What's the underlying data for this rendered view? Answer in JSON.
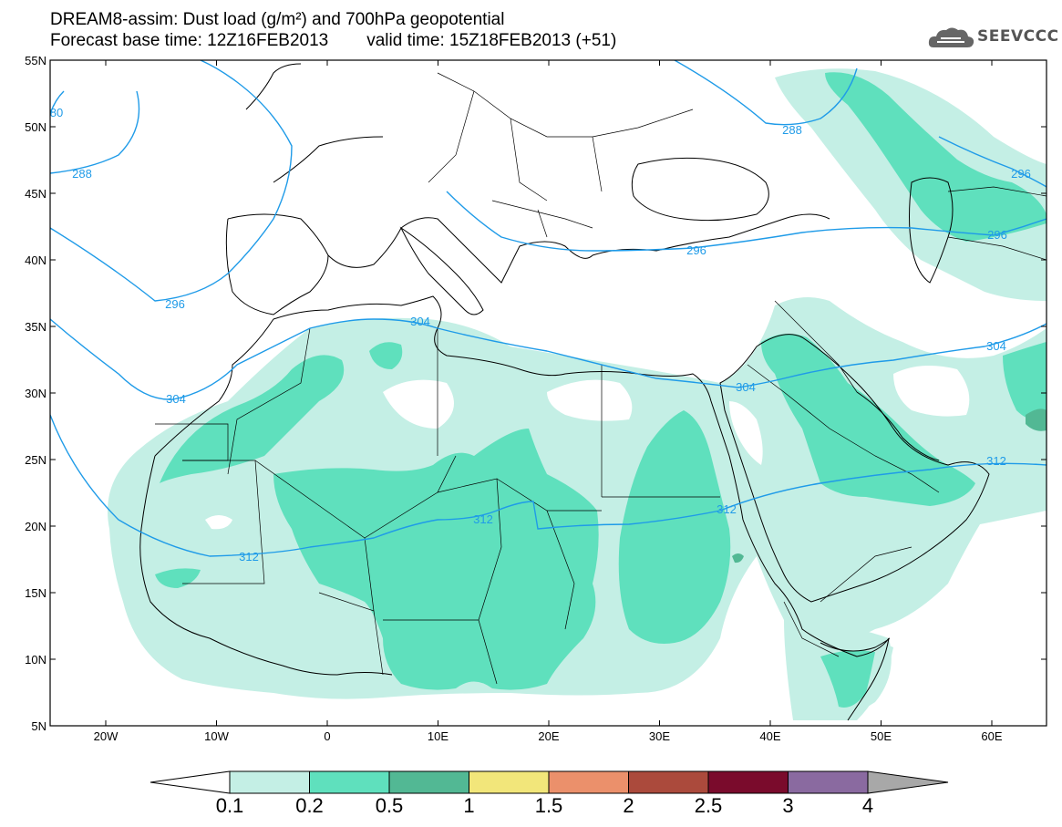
{
  "title": {
    "line1": "DREAM8-assim: Dust load (g/m²) and 700hPa geopotential",
    "base_time": "Forecast base time: 12Z16FEB2013",
    "valid_time": "valid time: 15Z18FEB2013 (+51)"
  },
  "logo": {
    "text": "SEEVCCC",
    "icon": "cloud-icon"
  },
  "axes": {
    "lat_labels": [
      "55N",
      "50N",
      "45N",
      "40N",
      "35N",
      "30N",
      "25N",
      "20N",
      "15N",
      "10N",
      "5N"
    ],
    "lon_labels": [
      "20W",
      "10W",
      "0",
      "10E",
      "20E",
      "30E",
      "40E",
      "50E",
      "60E"
    ]
  },
  "contour_labels": [
    "288",
    "288",
    "296",
    "296",
    "296",
    "304",
    "304",
    "304",
    "304",
    "312",
    "312",
    "312",
    "312",
    "296",
    "80"
  ],
  "colorbar": {
    "labels": [
      "0.1",
      "0.2",
      "0.5",
      "1",
      "1.5",
      "2",
      "2.5",
      "3",
      "4"
    ],
    "colors": [
      "#c4efe5",
      "#5fe0bd",
      "#52b894",
      "#f2e67a",
      "#eb906b",
      "#ab4a3c",
      "#7a0b2c",
      "#8a6aa0"
    ],
    "under_color": "#ffffff",
    "over_color": "#a8a8a8"
  },
  "colors": {
    "light_dust": "#c4efe5",
    "medium_dust": "#5fe0bd",
    "heavy_dust": "#52b894",
    "contour": "#1f9be8"
  }
}
